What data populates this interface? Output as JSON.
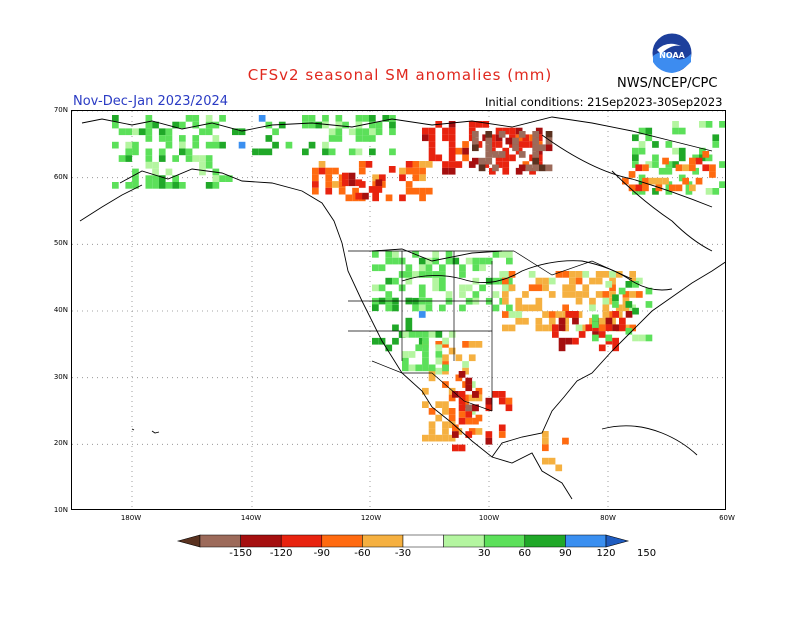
{
  "header": {
    "title": "CFSv2 seasonal SM anomalies (mm)",
    "season": "Nov-Dec-Jan 2023/2024",
    "initial_conditions": "Initial conditions: 21Sep2023-30Sep2023",
    "agency": "NWS/NCEP/CPC",
    "logo_text": "NOAA"
  },
  "map": {
    "lat_labels": [
      "70N",
      "60N",
      "50N",
      "40N",
      "30N",
      "20N",
      "10N"
    ],
    "lon_labels": [
      "180W",
      "140W",
      "120W",
      "100W",
      "80W",
      "60W"
    ],
    "gridlines": "dotted"
  },
  "colorbar": {
    "ticks": [
      "-150",
      "-120",
      "-90",
      "-60",
      "-30",
      "30",
      "60",
      "90",
      "120",
      "150"
    ],
    "colors": [
      "#5a3220",
      "#9c6a5a",
      "#a50f0f",
      "#e8230f",
      "#ff6a10",
      "#f5b040",
      "#ffffff",
      "#b4f5a0",
      "#5ce05a",
      "#20a828",
      "#3a8ff0",
      "#1f5cc0"
    ],
    "units": "mm"
  }
}
